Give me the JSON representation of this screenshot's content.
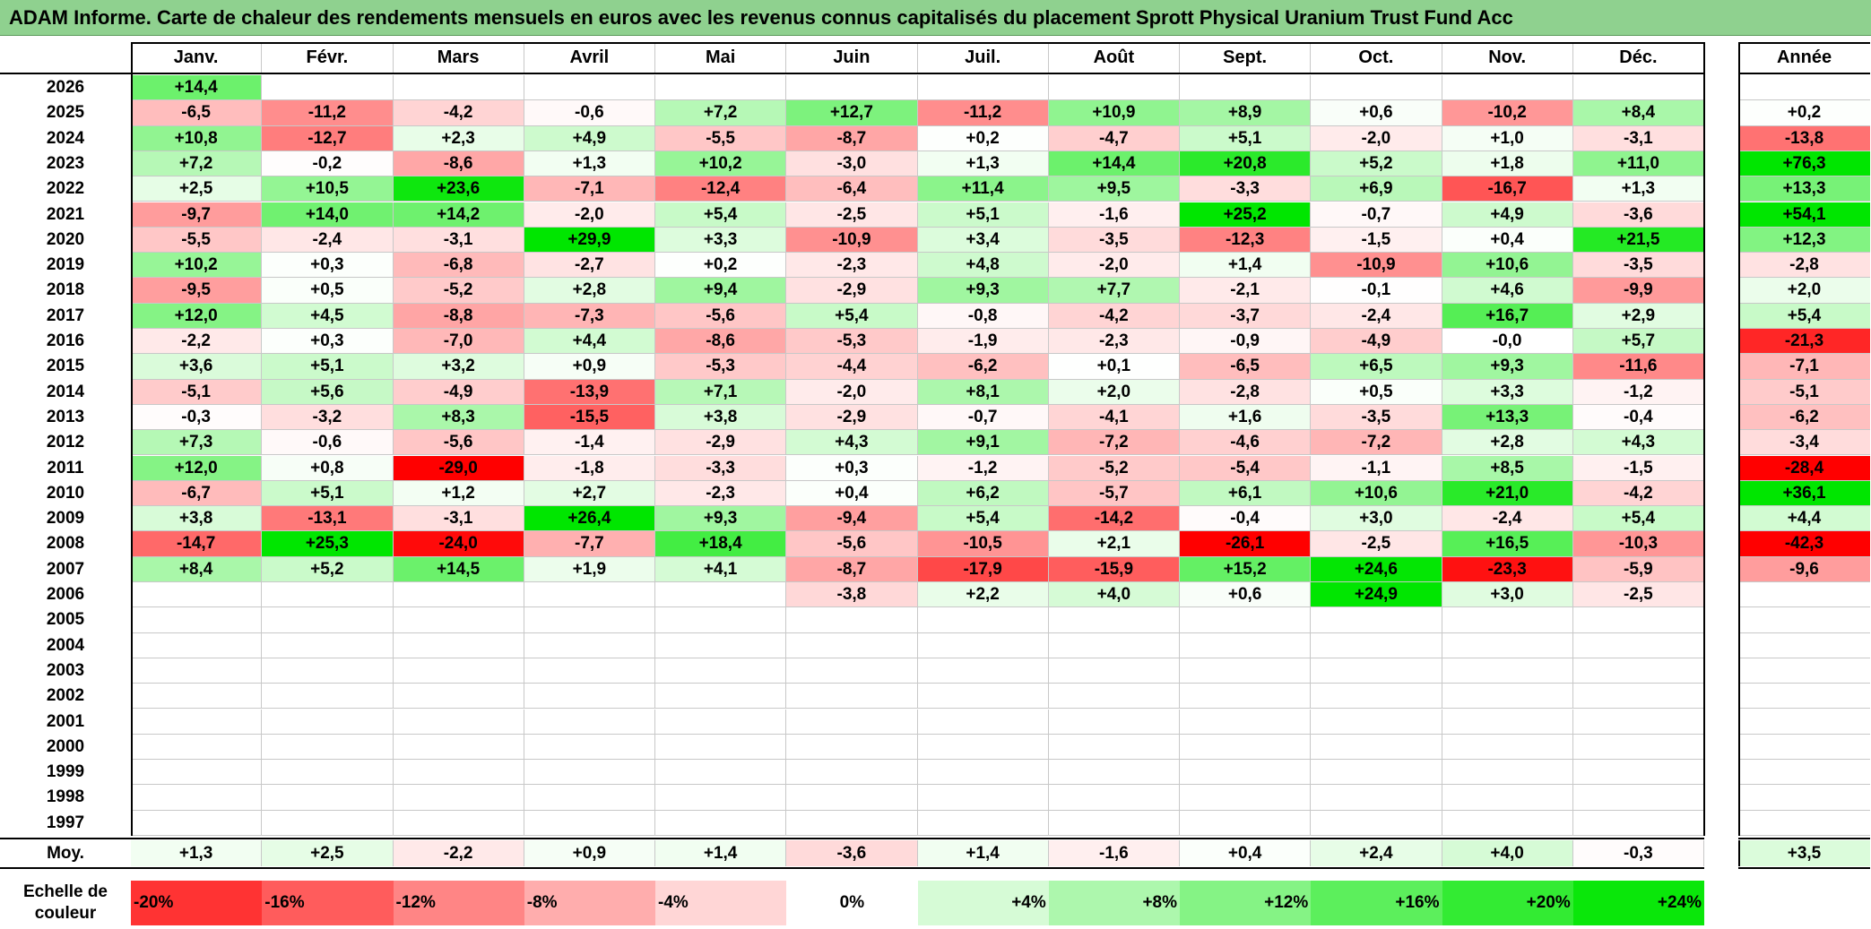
{
  "title": "ADAM Informe. Carte de chaleur des rendements mensuels en euros avec les revenus connus capitalisés du placement Sprott Physical Uranium Trust Fund Acc",
  "colors": {
    "negative_max": "#ff0000",
    "zero": "#ffffff",
    "positive_max": "#00e600",
    "title_bg": "#8fd18f"
  },
  "chart_data": {
    "type": "heatmap",
    "columns": [
      "Janv.",
      "Févr.",
      "Mars",
      "Avril",
      "Mai",
      "Juin",
      "Juil.",
      "Août",
      "Sept.",
      "Oct.",
      "Nov.",
      "Déc."
    ],
    "year_label": "Année",
    "rows": [
      {
        "year": "2026",
        "values": [
          "+14,4",
          "",
          "",
          "",
          "",
          "",
          "",
          "",
          "",
          "",
          "",
          ""
        ],
        "annual": ""
      },
      {
        "year": "2025",
        "values": [
          "-6,5",
          "-11,2",
          "-4,2",
          "-0,6",
          "+7,2",
          "+12,7",
          "-11,2",
          "+10,9",
          "+8,9",
          "+0,6",
          "-10,2",
          "+8,4"
        ],
        "annual": "+0,2"
      },
      {
        "year": "2024",
        "values": [
          "+10,8",
          "-12,7",
          "+2,3",
          "+4,9",
          "-5,5",
          "-8,7",
          "+0,2",
          "-4,7",
          "+5,1",
          "-2,0",
          "+1,0",
          "-3,1"
        ],
        "annual": "-13,8"
      },
      {
        "year": "2023",
        "values": [
          "+7,2",
          "-0,2",
          "-8,6",
          "+1,3",
          "+10,2",
          "-3,0",
          "+1,3",
          "+14,4",
          "+20,8",
          "+5,2",
          "+1,8",
          "+11,0"
        ],
        "annual": "+76,3"
      },
      {
        "year": "2022",
        "values": [
          "+2,5",
          "+10,5",
          "+23,6",
          "-7,1",
          "-12,4",
          "-6,4",
          "+11,4",
          "+9,5",
          "-3,3",
          "+6,9",
          "-16,7",
          "+1,3"
        ],
        "annual": "+13,3"
      },
      {
        "year": "2021",
        "values": [
          "-9,7",
          "+14,0",
          "+14,2",
          "-2,0",
          "+5,4",
          "-2,5",
          "+5,1",
          "-1,6",
          "+25,2",
          "-0,7",
          "+4,9",
          "-3,6"
        ],
        "annual": "+54,1"
      },
      {
        "year": "2020",
        "values": [
          "-5,5",
          "-2,4",
          "-3,1",
          "+29,9",
          "+3,3",
          "-10,9",
          "+3,4",
          "-3,5",
          "-12,3",
          "-1,5",
          "+0,4",
          "+21,5"
        ],
        "annual": "+12,3"
      },
      {
        "year": "2019",
        "values": [
          "+10,2",
          "+0,3",
          "-6,8",
          "-2,7",
          "+0,2",
          "-2,3",
          "+4,8",
          "-2,0",
          "+1,4",
          "-10,9",
          "+10,6",
          "-3,5"
        ],
        "annual": "-2,8"
      },
      {
        "year": "2018",
        "values": [
          "-9,5",
          "+0,5",
          "-5,2",
          "+2,8",
          "+9,4",
          "-2,9",
          "+9,3",
          "+7,7",
          "-2,1",
          "-0,1",
          "+4,6",
          "-9,9"
        ],
        "annual": "+2,0"
      },
      {
        "year": "2017",
        "values": [
          "+12,0",
          "+4,5",
          "-8,8",
          "-7,3",
          "-5,6",
          "+5,4",
          "-0,8",
          "-4,2",
          "-3,7",
          "-2,4",
          "+16,7",
          "+2,9"
        ],
        "annual": "+5,4"
      },
      {
        "year": "2016",
        "values": [
          "-2,2",
          "+0,3",
          "-7,0",
          "+4,4",
          "-8,6",
          "-5,3",
          "-1,9",
          "-2,3",
          "-0,9",
          "-4,9",
          "-0,0",
          "+5,7"
        ],
        "annual": "-21,3"
      },
      {
        "year": "2015",
        "values": [
          "+3,6",
          "+5,1",
          "+3,2",
          "+0,9",
          "-5,3",
          "-4,4",
          "-6,2",
          "+0,1",
          "-6,5",
          "+6,5",
          "+9,3",
          "-11,6"
        ],
        "annual": "-7,1"
      },
      {
        "year": "2014",
        "values": [
          "-5,1",
          "+5,6",
          "-4,9",
          "-13,9",
          "+7,1",
          "-2,0",
          "+8,1",
          "+2,0",
          "-2,8",
          "+0,5",
          "+3,3",
          "-1,2"
        ],
        "annual": "-5,1"
      },
      {
        "year": "2013",
        "values": [
          "-0,3",
          "-3,2",
          "+8,3",
          "-15,5",
          "+3,8",
          "-2,9",
          "-0,7",
          "-4,1",
          "+1,6",
          "-3,5",
          "+13,3",
          "-0,4"
        ],
        "annual": "-6,2"
      },
      {
        "year": "2012",
        "values": [
          "+7,3",
          "-0,6",
          "-5,6",
          "-1,4",
          "-2,9",
          "+4,3",
          "+9,1",
          "-7,2",
          "-4,6",
          "-7,2",
          "+2,8",
          "+4,3"
        ],
        "annual": "-3,4"
      },
      {
        "year": "2011",
        "values": [
          "+12,0",
          "+0,8",
          "-29,0",
          "-1,8",
          "-3,3",
          "+0,3",
          "-1,2",
          "-5,2",
          "-5,4",
          "-1,1",
          "+8,5",
          "-1,5"
        ],
        "annual": "-28,4"
      },
      {
        "year": "2010",
        "values": [
          "-6,7",
          "+5,1",
          "+1,2",
          "+2,7",
          "-2,3",
          "+0,4",
          "+6,2",
          "-5,7",
          "+6,1",
          "+10,6",
          "+21,0",
          "-4,2"
        ],
        "annual": "+36,1"
      },
      {
        "year": "2009",
        "values": [
          "+3,8",
          "-13,1",
          "-3,1",
          "+26,4",
          "+9,3",
          "-9,4",
          "+5,4",
          "-14,2",
          "-0,4",
          "+3,0",
          "-2,4",
          "+5,4"
        ],
        "annual": "+4,4"
      },
      {
        "year": "2008",
        "values": [
          "-14,7",
          "+25,3",
          "-24,0",
          "-7,7",
          "+18,4",
          "-5,6",
          "-10,5",
          "+2,1",
          "-26,1",
          "-2,5",
          "+16,5",
          "-10,3"
        ],
        "annual": "-42,3"
      },
      {
        "year": "2007",
        "values": [
          "+8,4",
          "+5,2",
          "+14,5",
          "+1,9",
          "+4,1",
          "-8,7",
          "-17,9",
          "-15,9",
          "+15,2",
          "+24,6",
          "-23,3",
          "-5,9"
        ],
        "annual": "-9,6"
      },
      {
        "year": "2006",
        "values": [
          "",
          "",
          "",
          "",
          "",
          "-3,8",
          "+2,2",
          "+4,0",
          "+0,6",
          "+24,9",
          "+3,0",
          "-2,5"
        ],
        "annual": ""
      },
      {
        "year": "2005",
        "values": [
          "",
          "",
          "",
          "",
          "",
          "",
          "",
          "",
          "",
          "",
          "",
          ""
        ],
        "annual": ""
      },
      {
        "year": "2004",
        "values": [
          "",
          "",
          "",
          "",
          "",
          "",
          "",
          "",
          "",
          "",
          "",
          ""
        ],
        "annual": ""
      },
      {
        "year": "2003",
        "values": [
          "",
          "",
          "",
          "",
          "",
          "",
          "",
          "",
          "",
          "",
          "",
          ""
        ],
        "annual": ""
      },
      {
        "year": "2002",
        "values": [
          "",
          "",
          "",
          "",
          "",
          "",
          "",
          "",
          "",
          "",
          "",
          ""
        ],
        "annual": ""
      },
      {
        "year": "2001",
        "values": [
          "",
          "",
          "",
          "",
          "",
          "",
          "",
          "",
          "",
          "",
          "",
          ""
        ],
        "annual": ""
      },
      {
        "year": "2000",
        "values": [
          "",
          "",
          "",
          "",
          "",
          "",
          "",
          "",
          "",
          "",
          "",
          ""
        ],
        "annual": ""
      },
      {
        "year": "1999",
        "values": [
          "",
          "",
          "",
          "",
          "",
          "",
          "",
          "",
          "",
          "",
          "",
          ""
        ],
        "annual": ""
      },
      {
        "year": "1998",
        "values": [
          "",
          "",
          "",
          "",
          "",
          "",
          "",
          "",
          "",
          "",
          "",
          ""
        ],
        "annual": ""
      },
      {
        "year": "1997",
        "values": [
          "",
          "",
          "",
          "",
          "",
          "",
          "",
          "",
          "",
          "",
          "",
          ""
        ],
        "annual": ""
      }
    ],
    "average": {
      "label": "Moy.",
      "values": [
        "+1,3",
        "+2,5",
        "-2,2",
        "+0,9",
        "+1,4",
        "-3,6",
        "+1,4",
        "-1,6",
        "+0,4",
        "+2,4",
        "+4,0",
        "-0,3"
      ],
      "annual": "+3,5"
    },
    "scale": {
      "label_line1": "Echelle de",
      "label_line2": "couleur",
      "values": [
        "-20%",
        "-16%",
        "-12%",
        "-8%",
        "-4%",
        "0%",
        "+4%",
        "+8%",
        "+12%",
        "+16%",
        "+20%",
        "+24%"
      ]
    },
    "color_range": [
      -25,
      25
    ]
  }
}
